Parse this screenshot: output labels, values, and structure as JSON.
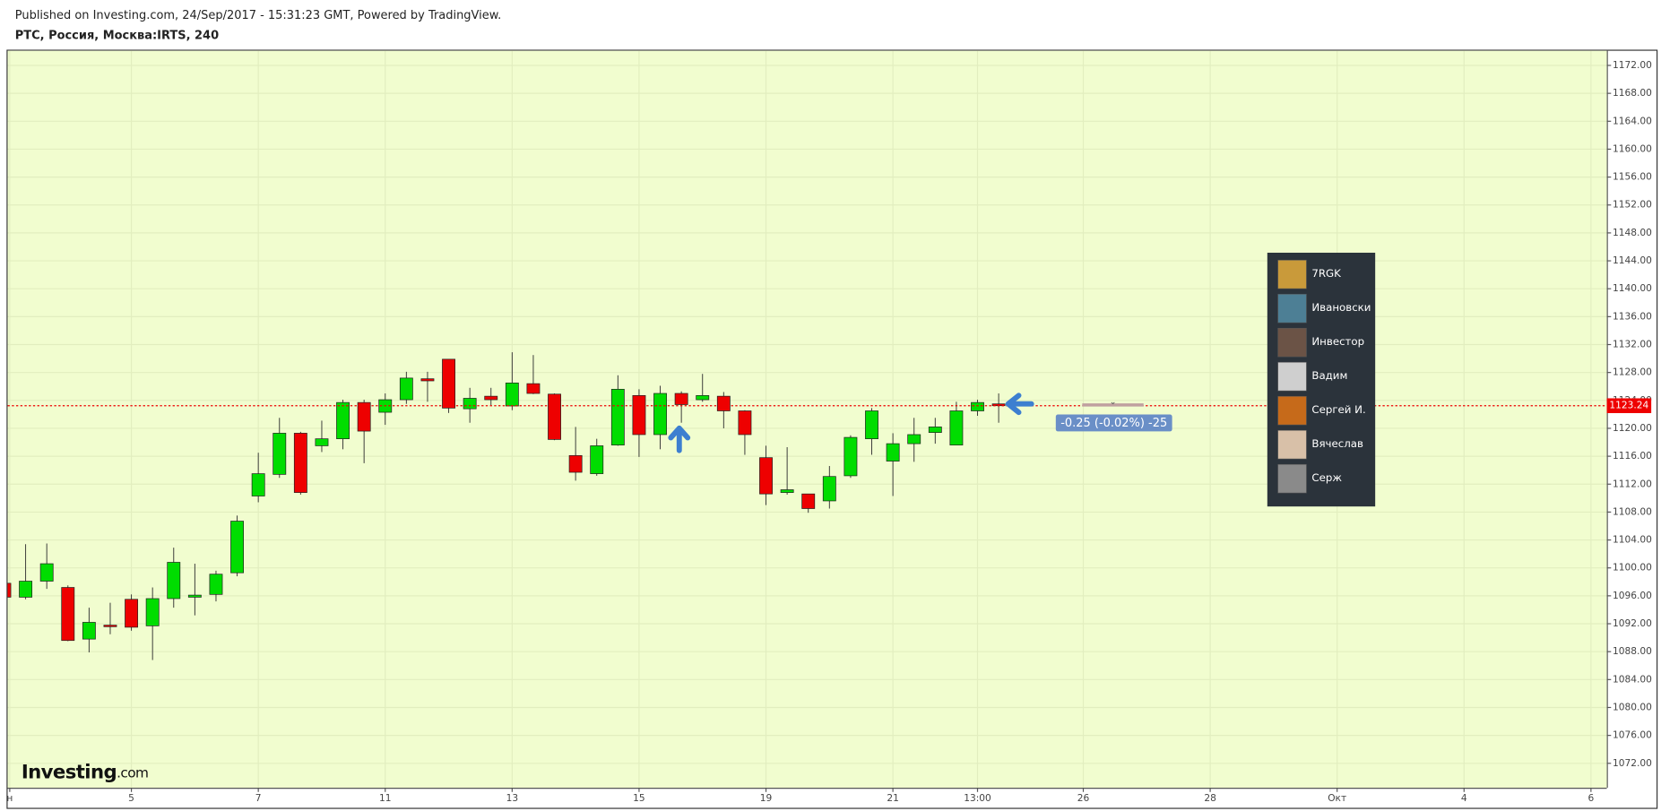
{
  "header": {
    "published": "Published on Investing.com, 24/Sep/2017 - 15:31:23 GMT, Powered by TradingView.",
    "symbol": "РТС, Россия, Москва:IRTS, 240"
  },
  "chart_data": {
    "type": "candlestick",
    "up_color": "#00dd00",
    "down_color": "#ee0000",
    "grid": true,
    "xlim": [
      0.15,
      75.75
    ],
    "ylim": [
      1068.5,
      1174.1
    ],
    "xticks": [
      {
        "value": 0.25,
        "label": "н"
      },
      {
        "value": 6,
        "label": "5"
      },
      {
        "value": 12,
        "label": "7"
      },
      {
        "value": 18,
        "label": "11"
      },
      {
        "value": 24,
        "label": "13"
      },
      {
        "value": 30,
        "label": "15"
      },
      {
        "value": 36,
        "label": "19"
      },
      {
        "value": 42,
        "label": "21"
      },
      {
        "value": 46,
        "label": "13:00"
      },
      {
        "value": 51,
        "label": "26"
      },
      {
        "value": 57,
        "label": "28"
      },
      {
        "value": 63,
        "label": "Окт"
      },
      {
        "value": 69,
        "label": "4"
      },
      {
        "value": 75,
        "label": "6"
      }
    ],
    "yticks": [
      {
        "value": 1072,
        "label": "1072.00"
      },
      {
        "value": 1076,
        "label": "1076.00"
      },
      {
        "value": 1080,
        "label": "1080.00"
      },
      {
        "value": 1084,
        "label": "1084.00"
      },
      {
        "value": 1088,
        "label": "1088.00"
      },
      {
        "value": 1092,
        "label": "1092.00"
      },
      {
        "value": 1096,
        "label": "1096.00"
      },
      {
        "value": 1100,
        "label": "1100.00"
      },
      {
        "value": 1104,
        "label": "1104.00"
      },
      {
        "value": 1108,
        "label": "1108.00"
      },
      {
        "value": 1112,
        "label": "1112.00"
      },
      {
        "value": 1116,
        "label": "1116.00"
      },
      {
        "value": 1120,
        "label": "1120.00"
      },
      {
        "value": 1124,
        "label": "1124.00"
      },
      {
        "value": 1128,
        "label": "1128.00"
      },
      {
        "value": 1132,
        "label": "1132.00"
      },
      {
        "value": 1136,
        "label": "1136.00"
      },
      {
        "value": 1140,
        "label": "1140.00"
      },
      {
        "value": 1144,
        "label": "1144.00"
      },
      {
        "value": 1148,
        "label": "1148.00"
      },
      {
        "value": 1152,
        "label": "1152.00"
      },
      {
        "value": 1156,
        "label": "1156.00"
      },
      {
        "value": 1160,
        "label": "1160.00"
      },
      {
        "value": 1164,
        "label": "1164.00"
      },
      {
        "value": 1168,
        "label": "1168.00"
      },
      {
        "value": 1172,
        "label": "1172.00"
      }
    ],
    "candles": {
      "x": [
        0,
        1,
        2,
        3,
        4,
        5,
        6,
        7,
        8,
        9,
        10,
        11,
        12,
        13,
        14,
        15,
        16,
        17,
        18,
        19,
        20,
        21,
        22,
        23,
        24,
        25,
        26,
        27,
        28,
        29,
        30,
        31,
        32,
        33,
        34,
        35,
        36,
        37,
        38,
        39,
        40,
        41,
        42,
        43,
        44,
        45,
        46,
        47
      ],
      "open": [
        1097.8,
        1095.8,
        1098.1,
        1097.2,
        1089.8,
        1091.8,
        1095.5,
        1091.7,
        1095.6,
        1095.8,
        1096.2,
        1099.3,
        1110.3,
        1113.4,
        1119.3,
        1117.5,
        1118.5,
        1123.7,
        1122.3,
        1124.1,
        1127.1,
        1129.9,
        1122.8,
        1124.6,
        1123.2,
        1126.4,
        1124.9,
        1116.1,
        1113.5,
        1117.6,
        1124.7,
        1119.1,
        1125.0,
        1124.1,
        1124.6,
        1122.5,
        1115.8,
        1110.8,
        1110.6,
        1109.6,
        1113.2,
        1118.5,
        1115.3,
        1117.8,
        1119.4,
        1117.6,
        1122.5,
        1123.5
      ],
      "high": [
        1098.0,
        1103.4,
        1103.5,
        1097.5,
        1094.3,
        1095.0,
        1096.2,
        1097.2,
        1102.9,
        1100.6,
        1099.6,
        1107.5,
        1116.5,
        1121.5,
        1119.5,
        1121.1,
        1124.1,
        1124.1,
        1125.0,
        1128.1,
        1128.1,
        1129.9,
        1125.8,
        1125.8,
        1130.9,
        1130.5,
        1125.0,
        1120.2,
        1118.5,
        1127.6,
        1125.6,
        1126.1,
        1125.3,
        1127.8,
        1125.2,
        1122.6,
        1117.5,
        1117.3,
        1110.6,
        1114.6,
        1119.0,
        1122.9,
        1119.3,
        1121.5,
        1121.5,
        1123.8,
        1124.1,
        1125.0
      ],
      "low": [
        1095.5,
        1095.5,
        1097.0,
        1089.5,
        1087.9,
        1090.5,
        1091.0,
        1086.8,
        1094.3,
        1093.2,
        1095.2,
        1098.8,
        1109.4,
        1112.9,
        1110.5,
        1116.6,
        1117.0,
        1115.0,
        1120.5,
        1123.5,
        1123.8,
        1122.2,
        1120.8,
        1123.3,
        1122.6,
        1124.9,
        1118.3,
        1112.5,
        1113.2,
        1117.5,
        1115.9,
        1117.0,
        1120.8,
        1123.8,
        1120.0,
        1116.2,
        1109.0,
        1110.5,
        1107.9,
        1108.5,
        1112.9,
        1116.2,
        1110.3,
        1115.2,
        1117.8,
        1117.6,
        1121.8,
        1120.8
      ],
      "close": [
        1095.8,
        1098.1,
        1100.6,
        1089.6,
        1092.2,
        1091.6,
        1091.5,
        1095.6,
        1100.8,
        1096.1,
        1099.1,
        1106.7,
        1113.5,
        1119.3,
        1110.8,
        1118.5,
        1123.7,
        1119.6,
        1124.1,
        1127.2,
        1126.8,
        1122.9,
        1124.3,
        1124.1,
        1126.5,
        1125.0,
        1118.4,
        1113.7,
        1117.5,
        1125.6,
        1119.1,
        1125.0,
        1123.4,
        1124.7,
        1122.5,
        1119.1,
        1110.6,
        1111.2,
        1108.5,
        1113.1,
        1118.7,
        1122.5,
        1117.8,
        1119.1,
        1120.2,
        1122.5,
        1123.7,
        1123.24
      ]
    },
    "last_price": 1123.24,
    "annotations": {
      "tooltip": "-0.25 (-0.02%) -25",
      "users": [
        "7RGK",
        "Ивановски",
        "Инвестор",
        "Вадим",
        "Сергей И.",
        "Вячеслав",
        "Серж"
      ]
    },
    "logo": {
      "main": "Investing",
      "suffix": ".com"
    }
  }
}
